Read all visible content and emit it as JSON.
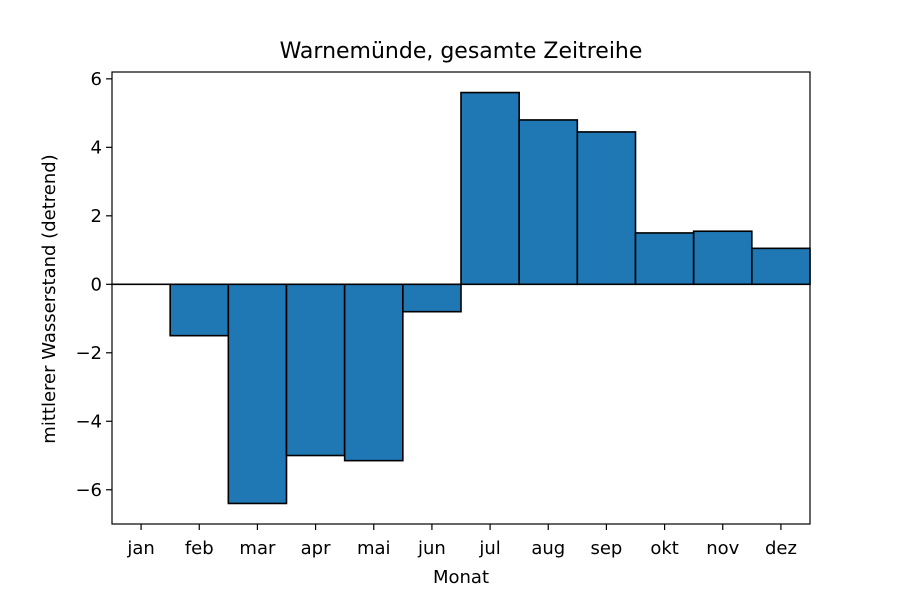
{
  "chart_data": {
    "type": "bar",
    "title": "Warnemünde, gesamte Zeitreihe",
    "xlabel": "Monat",
    "ylabel": "mittlerer Wasserstand (detrend)",
    "categories": [
      "jan",
      "feb",
      "mar",
      "apr",
      "mai",
      "jun",
      "jul",
      "aug",
      "sep",
      "okt",
      "nov",
      "dez"
    ],
    "values": [
      0.0,
      -1.5,
      -6.4,
      -5.0,
      -5.15,
      -0.8,
      5.6,
      4.8,
      4.45,
      1.5,
      1.55,
      1.05
    ],
    "ylim": [
      -7,
      6.2
    ],
    "yticks": [
      -6,
      -4,
      -2,
      0,
      2,
      4,
      6
    ],
    "ytick_labels": [
      "−6",
      "−4",
      "−2",
      "0",
      "2",
      "4",
      "6"
    ],
    "grid": false,
    "colors": {
      "bar_fill": "#1f77b4",
      "bar_edge": "#000000"
    }
  }
}
